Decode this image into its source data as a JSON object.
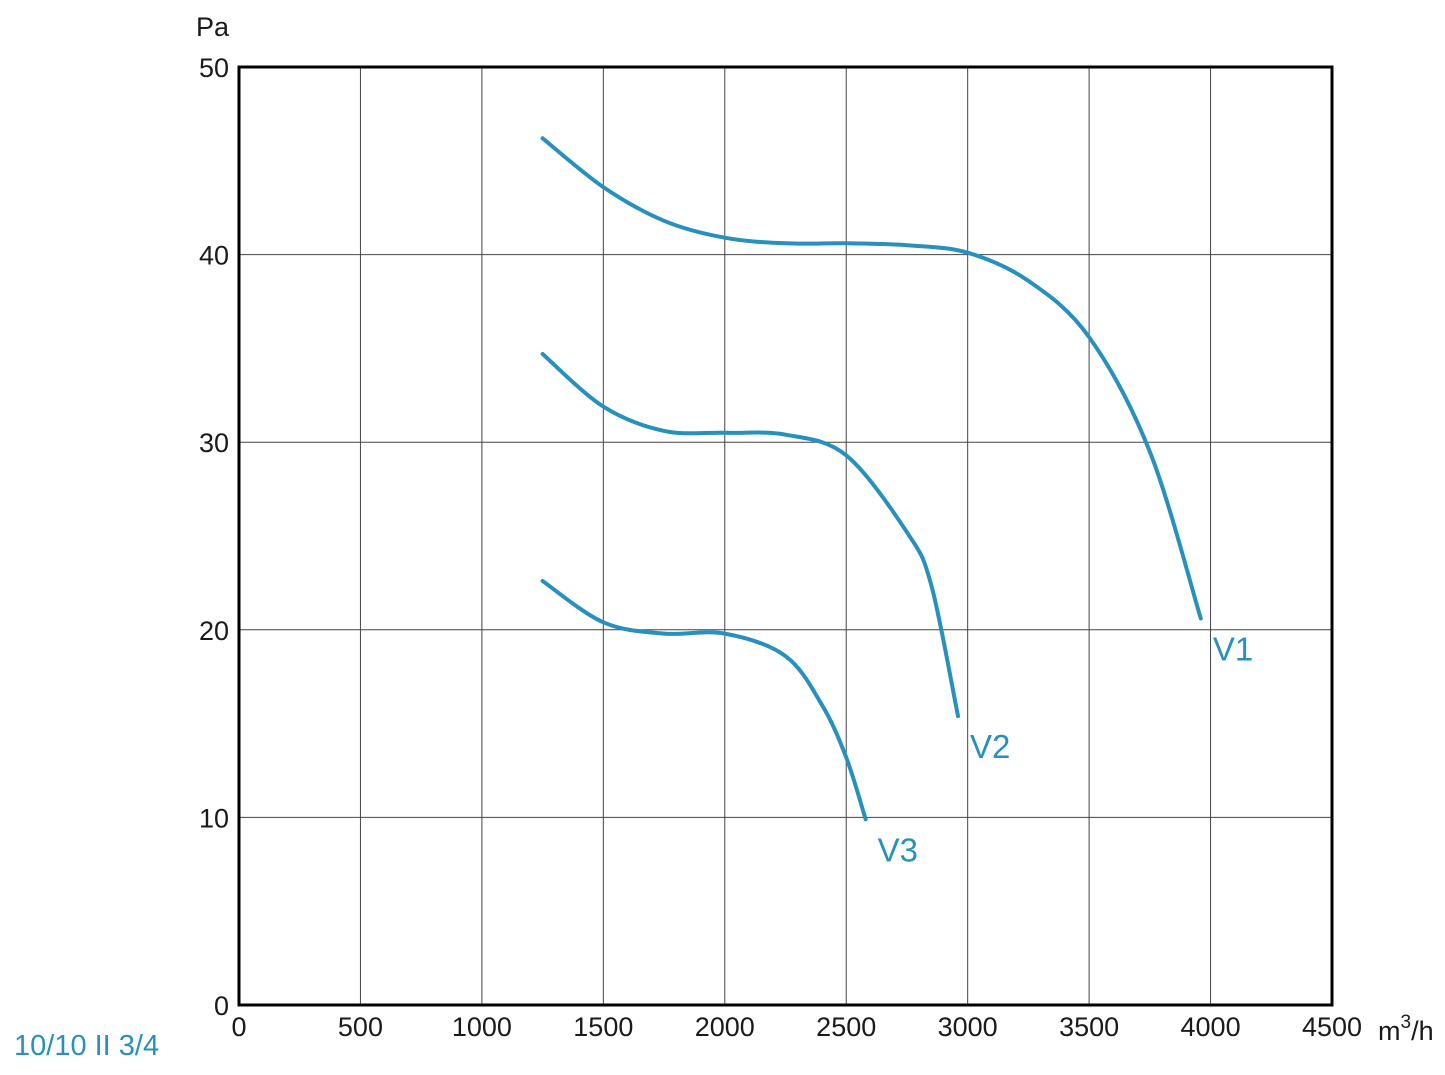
{
  "model_label": "10/10 II 3/4",
  "chart_data": {
    "type": "line",
    "title": "",
    "xlabel": "m",
    "xlabel_sup": "3",
    "xlabel_suffix": "/h",
    "ylabel": "Pa",
    "xlim": [
      0,
      4500
    ],
    "ylim": [
      0,
      50
    ],
    "x_ticks": [
      0,
      500,
      1000,
      1500,
      2000,
      2500,
      3000,
      3500,
      4000,
      4500
    ],
    "y_ticks": [
      0,
      10,
      20,
      30,
      40,
      50
    ],
    "x_tick_labels": [
      "0",
      "500",
      "1000",
      "1500",
      "2000",
      "2500",
      "3000",
      "3500",
      "4000",
      "4500"
    ],
    "y_tick_labels": [
      "0",
      "10",
      "20",
      "30",
      "40",
      "50"
    ],
    "grid": true,
    "line_color": "#2790bc",
    "series": [
      {
        "name": "V1",
        "points": [
          [
            1250,
            46.2
          ],
          [
            1500,
            43.6
          ],
          [
            1750,
            41.8
          ],
          [
            2000,
            40.9
          ],
          [
            2250,
            40.6
          ],
          [
            2500,
            40.6
          ],
          [
            2750,
            40.5
          ],
          [
            3000,
            40.1
          ],
          [
            3250,
            38.6
          ],
          [
            3500,
            35.6
          ],
          [
            3750,
            29.5
          ],
          [
            3960,
            20.6
          ]
        ]
      },
      {
        "name": "V2",
        "points": [
          [
            1250,
            34.7
          ],
          [
            1500,
            31.9
          ],
          [
            1750,
            30.6
          ],
          [
            2000,
            30.5
          ],
          [
            2250,
            30.4
          ],
          [
            2500,
            29.3
          ],
          [
            2750,
            25.2
          ],
          [
            2850,
            22.4
          ],
          [
            2960,
            15.4
          ]
        ]
      },
      {
        "name": "V3",
        "points": [
          [
            1250,
            22.6
          ],
          [
            1500,
            20.4
          ],
          [
            1750,
            19.8
          ],
          [
            2000,
            19.8
          ],
          [
            2250,
            18.6
          ],
          [
            2400,
            16.0
          ],
          [
            2500,
            13.2
          ],
          [
            2580,
            9.9
          ]
        ]
      }
    ]
  }
}
